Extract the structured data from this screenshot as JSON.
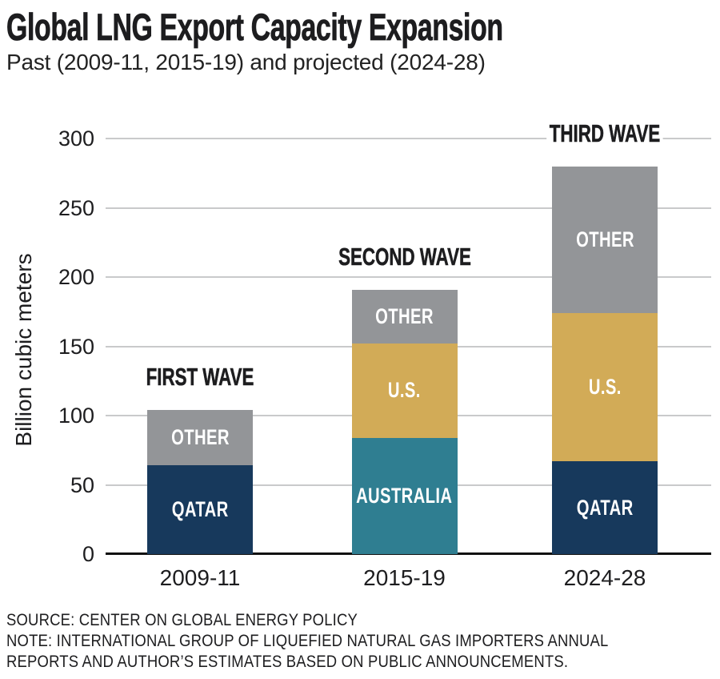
{
  "header": {
    "title": "Global LNG Export Capacity Expansion",
    "subtitle": "Past (2009-11, 2015-19) and projected (2024-28)"
  },
  "chart_data": {
    "type": "bar",
    "stacked": true,
    "title": "Global LNG Export Capacity Expansion",
    "subtitle": "Past (2009-11, 2015-19) and projected (2024-28)",
    "xlabel": "",
    "ylabel": "Billion cubic meters",
    "ylim": [
      0,
      300
    ],
    "yticks": [
      0,
      50,
      100,
      150,
      200,
      250,
      300
    ],
    "grid": true,
    "legend": "labels-inside-bars",
    "categories": [
      "2009-11",
      "2015-19",
      "2024-28"
    ],
    "bars": [
      {
        "category": "2009-11",
        "wave_label": "FIRST WAVE",
        "segments": [
          {
            "label": "QATAR",
            "value": 64,
            "color": "#17395c"
          },
          {
            "label": "OTHER",
            "value": 40,
            "color": "#939598"
          }
        ]
      },
      {
        "category": "2015-19",
        "wave_label": "SECOND WAVE",
        "segments": [
          {
            "label": "AUSTRALIA",
            "value": 84,
            "color": "#2f7e91"
          },
          {
            "label": "U.S.",
            "value": 68,
            "color": "#d2ab57"
          },
          {
            "label": "OTHER",
            "value": 39,
            "color": "#939598"
          }
        ]
      },
      {
        "category": "2024-28",
        "wave_label": "THIRD WAVE",
        "segments": [
          {
            "label": "QATAR",
            "value": 67,
            "color": "#17395c"
          },
          {
            "label": "U.S.",
            "value": 107,
            "color": "#d2ab57"
          },
          {
            "label": "OTHER",
            "value": 106,
            "color": "#939598"
          }
        ]
      }
    ],
    "colors": {
      "qatar": "#17395c",
      "australia": "#2f7e91",
      "us": "#d2ab57",
      "other": "#939598",
      "gridline": "#c9cacb",
      "axis": "#111111",
      "text": "#1d1d1f"
    }
  },
  "footer": {
    "lines": [
      "SOURCE: CENTER ON GLOBAL ENERGY POLICY",
      "NOTE: INTERNATIONAL GROUP OF LIQUEFIED NATURAL GAS IMPORTERS ANNUAL",
      "REPORTS AND AUTHOR’S ESTIMATES BASED ON PUBLIC ANNOUNCEMENTS."
    ]
  }
}
